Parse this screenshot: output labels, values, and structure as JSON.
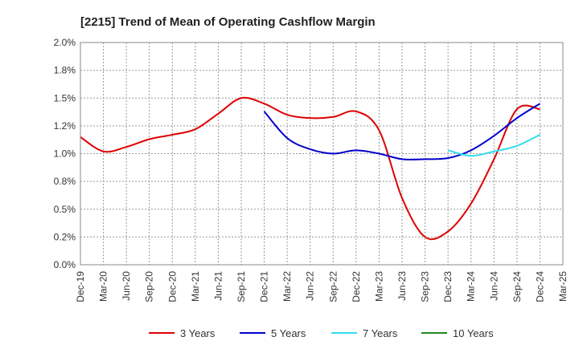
{
  "chart_data": {
    "type": "line",
    "title": "[2215]  Trend of Mean of Operating Cashflow Margin",
    "x": [
      "Dec-19",
      "Mar-20",
      "Jun-20",
      "Sep-20",
      "Dec-20",
      "Mar-21",
      "Jun-21",
      "Sep-21",
      "Dec-21",
      "Mar-22",
      "Jun-22",
      "Sep-22",
      "Dec-22",
      "Mar-23",
      "Jun-23",
      "Sep-23",
      "Dec-23",
      "Mar-24",
      "Jun-24",
      "Sep-24",
      "Dec-24",
      "Mar-25"
    ],
    "yticks": [
      "0.0%",
      "0.2%",
      "0.5%",
      "0.8%",
      "1.0%",
      "1.2%",
      "1.5%",
      "1.8%",
      "2.0%"
    ],
    "ylim": [
      0,
      2.0
    ],
    "grid": true,
    "legend_position": "bottom",
    "series": [
      {
        "name": "3 Years",
        "color": "#dd0000",
        "values": [
          1.15,
          1.02,
          1.06,
          1.13,
          1.17,
          1.22,
          1.36,
          1.5,
          1.45,
          1.35,
          1.32,
          1.33,
          1.38,
          1.21,
          0.6,
          0.25,
          0.3,
          0.55,
          0.95,
          1.4,
          1.4,
          null
        ]
      },
      {
        "name": "5 Years",
        "color": "#0000cc",
        "values": [
          null,
          null,
          null,
          null,
          null,
          null,
          null,
          null,
          1.38,
          1.14,
          1.04,
          1.0,
          1.03,
          1.0,
          0.95,
          0.95,
          0.96,
          1.03,
          1.16,
          1.32,
          1.45,
          null
        ]
      },
      {
        "name": "7 Years",
        "color": "#33ddee",
        "values": [
          null,
          null,
          null,
          null,
          null,
          null,
          null,
          null,
          null,
          null,
          null,
          null,
          null,
          null,
          null,
          null,
          1.03,
          0.98,
          1.02,
          1.07,
          1.17,
          null
        ]
      },
      {
        "name": "10 Years",
        "color": "#228822",
        "values": [
          null,
          null,
          null,
          null,
          null,
          null,
          null,
          null,
          null,
          null,
          null,
          null,
          null,
          null,
          null,
          null,
          null,
          null,
          null,
          null,
          null,
          null
        ]
      }
    ]
  }
}
